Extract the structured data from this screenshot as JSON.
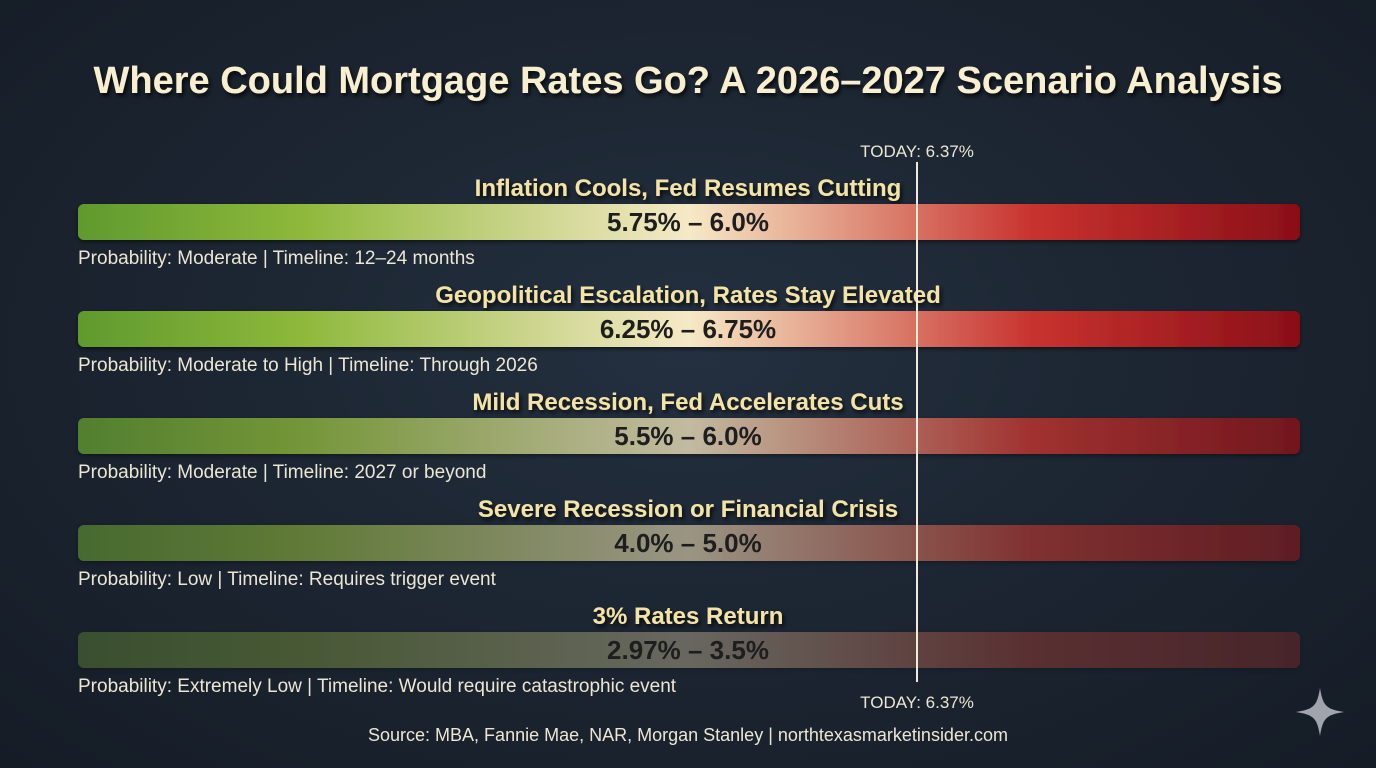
{
  "chart_data": {
    "type": "bar",
    "title": "Where Could Mortgage Rates Go? A 2026–2027 Scenario Analysis",
    "today_label": "TODAY: 6.37%",
    "today_value": 6.37,
    "source": "Source: MBA, Fannie Mae, NAR, Morgan Stanley | northtexasmarketinsider.com",
    "colors": {
      "low": "#5f9a2e",
      "mid": "#f6e9c6",
      "high": "#8a0f18",
      "today_line": "#f0ead8",
      "scenario_title": "#f3e3a6"
    },
    "scenarios": [
      {
        "name": "Inflation Cools, Fed Resumes Cutting",
        "range_label": "5.75% – 6.0%",
        "low": 5.75,
        "high": 6.0,
        "details": "Probability: Moderate | Timeline: 12–24 months",
        "probability": "Moderate",
        "opacity": 1.0
      },
      {
        "name": "Geopolitical Escalation, Rates Stay Elevated",
        "range_label": "6.25% – 6.75%",
        "low": 6.25,
        "high": 6.75,
        "details": "Probability: Moderate to High | Timeline: Through 2026",
        "probability": "Moderate to High",
        "opacity": 1.0
      },
      {
        "name": "Mild Recession, Fed Accelerates Cuts",
        "range_label": "5.5% – 6.0%",
        "low": 5.5,
        "high": 6.0,
        "details": "Probability: Moderate | Timeline: 2027 or beyond",
        "probability": "Moderate",
        "opacity": 0.75
      },
      {
        "name": "Severe Recession or Financial Crisis",
        "range_label": "4.0% – 5.0%",
        "low": 4.0,
        "high": 5.0,
        "details": "Probability: Low | Timeline: Requires trigger event",
        "probability": "Low",
        "opacity": 0.55
      },
      {
        "name": "3% Rates Return",
        "range_label": "2.97% – 3.5%",
        "low": 2.97,
        "high": 3.5,
        "details": "Probability: Extremely Low | Timeline: Would require catastrophic event",
        "probability": "Extremely Low",
        "opacity": 0.3
      }
    ]
  },
  "icons": {
    "corner": "sparkle-icon"
  }
}
